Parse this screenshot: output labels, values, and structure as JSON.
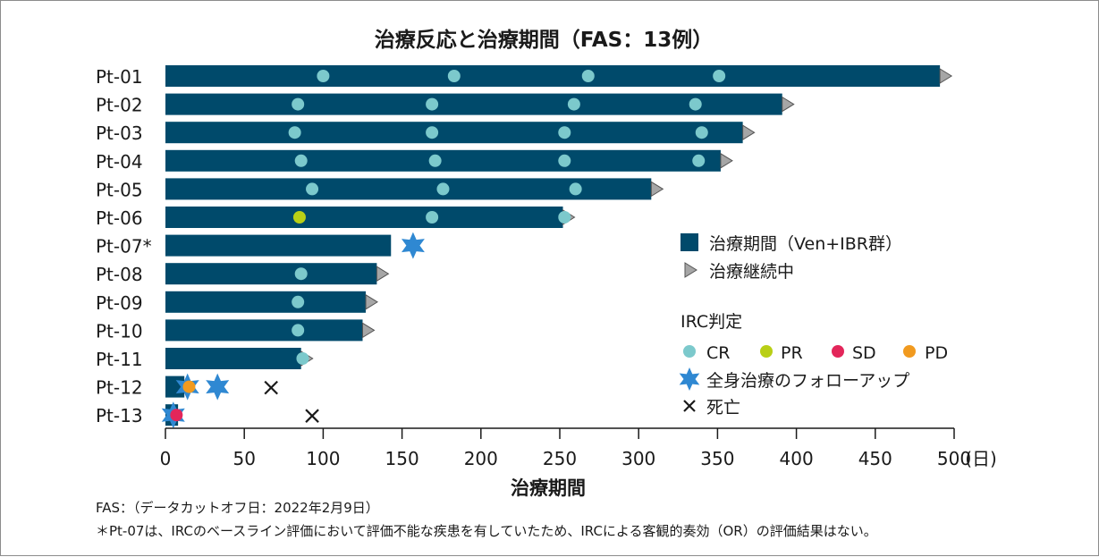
{
  "chart_data": {
    "type": "bar",
    "orientation": "horizontal",
    "title": "治療反応と治療期間（FAS：13例）",
    "xlabel": "治療期間",
    "x_unit": "(日)",
    "xlim": [
      0,
      500
    ],
    "xticks": [
      0,
      50,
      100,
      150,
      200,
      250,
      300,
      350,
      400,
      450,
      500
    ],
    "categories": [
      "Pt-01",
      "Pt-02",
      "Pt-03",
      "Pt-04",
      "Pt-05",
      "Pt-06",
      "Pt-07*",
      "Pt-08",
      "Pt-09",
      "Pt-10",
      "Pt-11",
      "Pt-12",
      "Pt-13"
    ],
    "bars": [
      {
        "patient": "Pt-01",
        "duration": 491,
        "ongoing": true
      },
      {
        "patient": "Pt-02",
        "duration": 391,
        "ongoing": true
      },
      {
        "patient": "Pt-03",
        "duration": 366,
        "ongoing": true
      },
      {
        "patient": "Pt-04",
        "duration": 352,
        "ongoing": true
      },
      {
        "patient": "Pt-05",
        "duration": 308,
        "ongoing": true
      },
      {
        "patient": "Pt-06",
        "duration": 252,
        "ongoing": true
      },
      {
        "patient": "Pt-07*",
        "duration": 143,
        "ongoing": false
      },
      {
        "patient": "Pt-08",
        "duration": 134,
        "ongoing": true
      },
      {
        "patient": "Pt-09",
        "duration": 127,
        "ongoing": true
      },
      {
        "patient": "Pt-10",
        "duration": 125,
        "ongoing": true
      },
      {
        "patient": "Pt-11",
        "duration": 86,
        "ongoing": true
      },
      {
        "patient": "Pt-12",
        "duration": 12,
        "ongoing": false
      },
      {
        "patient": "Pt-13",
        "duration": 8,
        "ongoing": false
      }
    ],
    "responses": [
      {
        "patient": "Pt-01",
        "day": 100,
        "type": "CR"
      },
      {
        "patient": "Pt-01",
        "day": 183,
        "type": "CR"
      },
      {
        "patient": "Pt-01",
        "day": 268,
        "type": "CR"
      },
      {
        "patient": "Pt-01",
        "day": 351,
        "type": "CR"
      },
      {
        "patient": "Pt-02",
        "day": 84,
        "type": "CR"
      },
      {
        "patient": "Pt-02",
        "day": 169,
        "type": "CR"
      },
      {
        "patient": "Pt-02",
        "day": 259,
        "type": "CR"
      },
      {
        "patient": "Pt-02",
        "day": 336,
        "type": "CR"
      },
      {
        "patient": "Pt-03",
        "day": 82,
        "type": "CR"
      },
      {
        "patient": "Pt-03",
        "day": 169,
        "type": "CR"
      },
      {
        "patient": "Pt-03",
        "day": 253,
        "type": "CR"
      },
      {
        "patient": "Pt-03",
        "day": 340,
        "type": "CR"
      },
      {
        "patient": "Pt-04",
        "day": 86,
        "type": "CR"
      },
      {
        "patient": "Pt-04",
        "day": 171,
        "type": "CR"
      },
      {
        "patient": "Pt-04",
        "day": 253,
        "type": "CR"
      },
      {
        "patient": "Pt-04",
        "day": 338,
        "type": "CR"
      },
      {
        "patient": "Pt-05",
        "day": 93,
        "type": "CR"
      },
      {
        "patient": "Pt-05",
        "day": 176,
        "type": "CR"
      },
      {
        "patient": "Pt-05",
        "day": 260,
        "type": "CR"
      },
      {
        "patient": "Pt-06",
        "day": 85,
        "type": "PR"
      },
      {
        "patient": "Pt-06",
        "day": 169,
        "type": "CR"
      },
      {
        "patient": "Pt-06",
        "day": 253,
        "type": "CR"
      },
      {
        "patient": "Pt-08",
        "day": 86,
        "type": "CR"
      },
      {
        "patient": "Pt-09",
        "day": 84,
        "type": "CR"
      },
      {
        "patient": "Pt-10",
        "day": 84,
        "type": "CR"
      },
      {
        "patient": "Pt-11",
        "day": 87,
        "type": "CR"
      },
      {
        "patient": "Pt-12",
        "day": 15,
        "type": "PD"
      },
      {
        "patient": "Pt-13",
        "day": 7,
        "type": "SD"
      }
    ],
    "follow_up": [
      {
        "patient": "Pt-07*",
        "day": 157
      },
      {
        "patient": "Pt-12",
        "day": 14
      },
      {
        "patient": "Pt-12",
        "day": 33
      },
      {
        "patient": "Pt-13",
        "day": 5
      }
    ],
    "deaths": [
      {
        "patient": "Pt-12",
        "day": 67
      },
      {
        "patient": "Pt-13",
        "day": 93
      }
    ],
    "legend": {
      "bar_label": "治療期間（Ven+IBR群）",
      "ongoing_label": "治療継続中",
      "irc_title": "IRC判定",
      "response_labels": [
        "CR",
        "PR",
        "SD",
        "PD"
      ],
      "follow_up_label": "全身治療のフォローアップ",
      "death_label": "死亡"
    },
    "colors": {
      "bar": "#004a6b",
      "CR": "#7cc9cc",
      "PR": "#b9cf16",
      "SD": "#e3265a",
      "PD": "#f19a1f",
      "follow_up": "#2f88d2",
      "arrow": "#a6a6a6",
      "death": "#1a1a1a"
    }
  },
  "footnotes": [
    "FAS：（データカットオフ日：2022年2月9日）",
    "＊Pt-07は、IRCのベースライン評価において評価不能な疾患を有していたため、IRCによる客観的奏効（OR）の評価結果はない。"
  ]
}
